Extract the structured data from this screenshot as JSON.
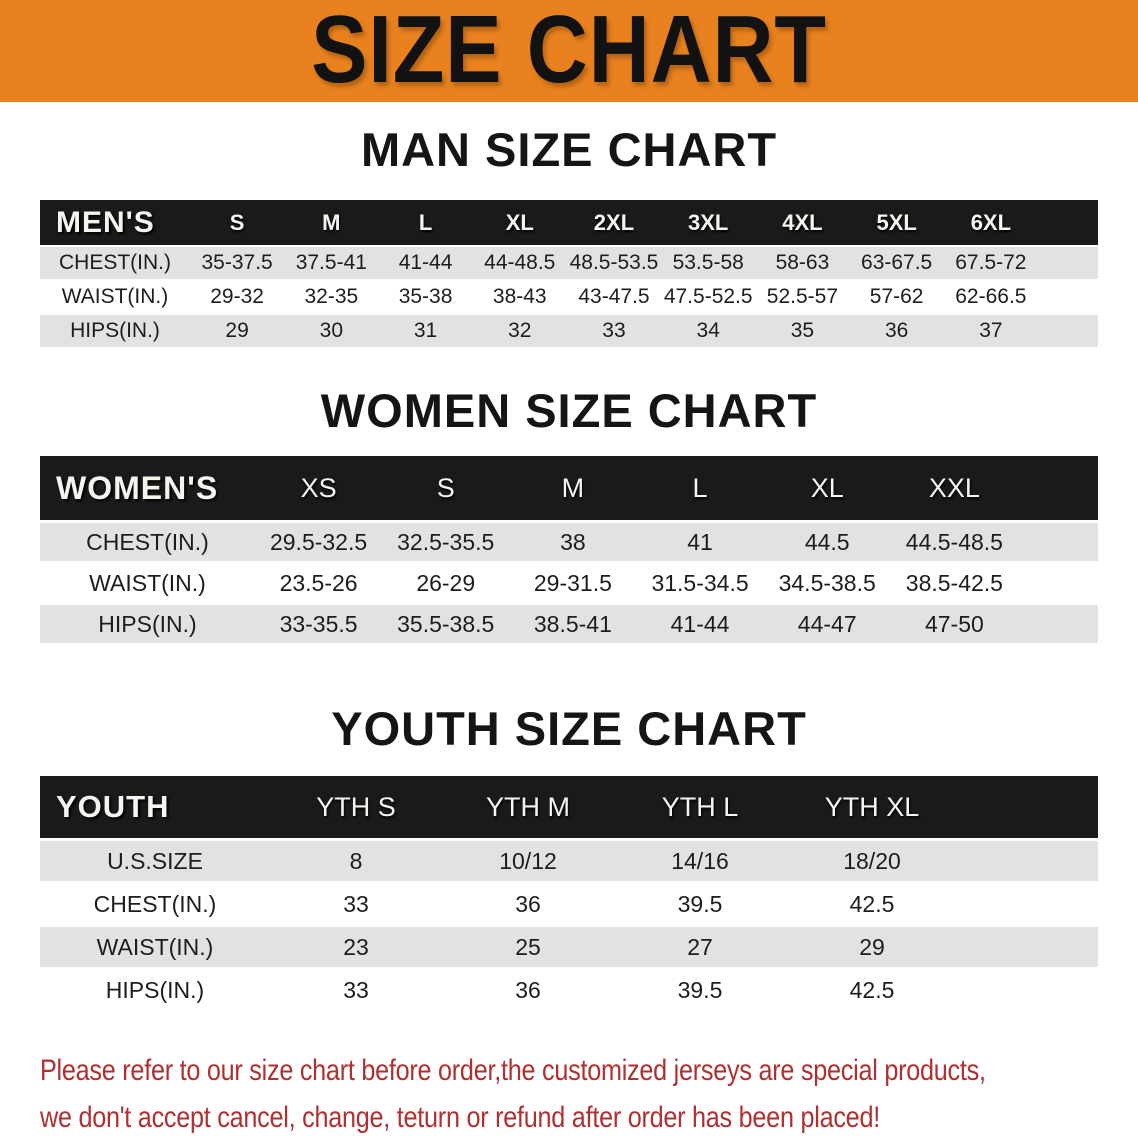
{
  "banner": {
    "title": "SIZE CHART",
    "bg_color": "#E8811E",
    "text_color": "#121212"
  },
  "sections": [
    {
      "key": "men",
      "heading": "MAN SIZE CHART",
      "table": {
        "header_label": "MEN'S",
        "columns": [
          "S",
          "M",
          "L",
          "XL",
          "2XL",
          "3XL",
          "4XL",
          "5XL",
          "6XL"
        ],
        "rows": [
          {
            "label": "CHEST(IN.)",
            "values": [
              "35-37.5",
              "37.5-41",
              "41-44",
              "44-48.5",
              "48.5-53.5",
              "53.5-58",
              "58-63",
              "63-67.5",
              "67.5-72"
            ]
          },
          {
            "label": "WAIST(IN.)",
            "values": [
              "29-32",
              "32-35",
              "35-38",
              "38-43",
              "43-47.5",
              "47.5-52.5",
              "52.5-57",
              "57-62",
              "62-66.5"
            ]
          },
          {
            "label": "HIPS(IN.)",
            "values": [
              "29",
              "30",
              "31",
              "32",
              "33",
              "34",
              "35",
              "36",
              "37"
            ]
          }
        ]
      }
    },
    {
      "key": "women",
      "heading": "WOMEN SIZE CHART",
      "table": {
        "header_label": "WOMEN'S",
        "columns": [
          "XS",
          "S",
          "M",
          "L",
          "XL",
          "XXL"
        ],
        "rows": [
          {
            "label": "CHEST(IN.)",
            "values": [
              "29.5-32.5",
              "32.5-35.5",
              "38",
              "41",
              "44.5",
              "44.5-48.5"
            ]
          },
          {
            "label": "WAIST(IN.)",
            "values": [
              "23.5-26",
              "26-29",
              "29-31.5",
              "31.5-34.5",
              "34.5-38.5",
              "38.5-42.5"
            ]
          },
          {
            "label": "HIPS(IN.)",
            "values": [
              "33-35.5",
              "35.5-38.5",
              "38.5-41",
              "41-44",
              "44-47",
              "47-50"
            ]
          }
        ]
      }
    },
    {
      "key": "youth",
      "heading": "YOUTH SIZE CHART",
      "table": {
        "header_label": "YOUTH",
        "columns": [
          "YTH S",
          "YTH M",
          "YTH L",
          "YTH XL"
        ],
        "rows": [
          {
            "label": "U.S.SIZE",
            "values": [
              "8",
              "10/12",
              "14/16",
              "18/20"
            ]
          },
          {
            "label": "CHEST(IN.)",
            "values": [
              "33",
              "36",
              "39.5",
              "42.5"
            ]
          },
          {
            "label": "WAIST(IN.)",
            "values": [
              "23",
              "25",
              "27",
              "29"
            ]
          },
          {
            "label": "HIPS(IN.)",
            "values": [
              "33",
              "36",
              "39.5",
              "42.5"
            ]
          }
        ]
      }
    }
  ],
  "footer": {
    "line1": "Please refer to our size chart before order,the customized jerseys are special products,",
    "line2": "we don't accept cancel, change, teturn or refund after order has been placed!",
    "text_color": "#B03030"
  },
  "colors": {
    "banner_orange": "#E8811E",
    "table_header_black": "#1a1a1a",
    "row_gray": "#E2E2E2",
    "row_white": "#FFFFFF",
    "disclaimer_red": "#B03030"
  }
}
